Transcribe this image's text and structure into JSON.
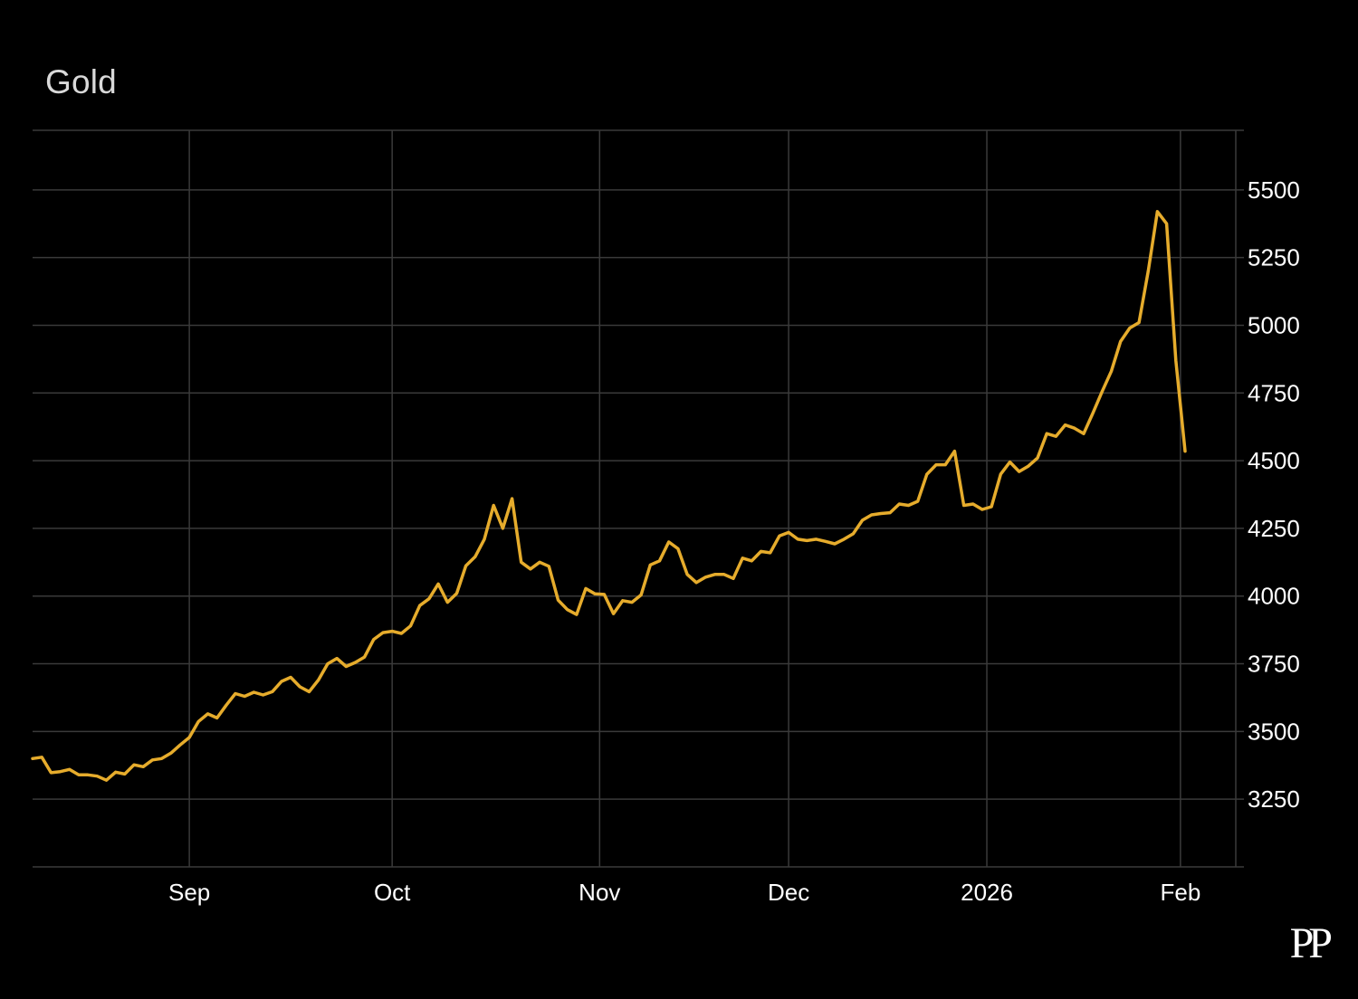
{
  "colors": {
    "background": "#000000",
    "grid": "#3a3a3a",
    "line": "#e6ac2c",
    "text": "#ffffff",
    "title": "#d9d9d9"
  },
  "logo_text": "PP",
  "chart_data": {
    "type": "line",
    "title": "Gold",
    "xlabel": "",
    "ylabel": "",
    "ylim": [
      3000,
      5720
    ],
    "yticks": [
      3250,
      3500,
      3750,
      4000,
      4250,
      4500,
      4750,
      5000,
      5250,
      5500
    ],
    "xlim": [
      0,
      130.5
    ],
    "xticks": [
      {
        "x": 17,
        "label": "Sep"
      },
      {
        "x": 39,
        "label": "Oct"
      },
      {
        "x": 61.5,
        "label": "Nov"
      },
      {
        "x": 82,
        "label": "Dec"
      },
      {
        "x": 103.5,
        "label": "2026"
      },
      {
        "x": 124.5,
        "label": "Feb"
      }
    ],
    "grid": true,
    "legend": "none",
    "series": [
      {
        "values": [
          3400,
          3405,
          3348,
          3352,
          3360,
          3340,
          3340,
          3335,
          3320,
          3350,
          3343,
          3377,
          3370,
          3395,
          3400,
          3420,
          3450,
          3478,
          3537,
          3565,
          3550,
          3597,
          3640,
          3630,
          3645,
          3635,
          3647,
          3685,
          3700,
          3665,
          3647,
          3690,
          3750,
          3770,
          3740,
          3755,
          3775,
          3840,
          3865,
          3870,
          3862,
          3890,
          3965,
          3990,
          4045,
          3977,
          4010,
          4112,
          4145,
          4210,
          4335,
          4250,
          4360,
          4125,
          4100,
          4125,
          4110,
          3985,
          3950,
          3932,
          4028,
          4008,
          4006,
          3935,
          3983,
          3977,
          4004,
          4115,
          4130,
          4200,
          4175,
          4080,
          4050,
          4070,
          4080,
          4080,
          4065,
          4140,
          4130,
          4165,
          4160,
          4222,
          4235,
          4210,
          4205,
          4210,
          4202,
          4193,
          4210,
          4230,
          4280,
          4300,
          4305,
          4308,
          4340,
          4335,
          4350,
          4450,
          4485,
          4485,
          4535,
          4335,
          4340,
          4320,
          4330,
          4450,
          4495,
          4460,
          4480,
          4510,
          4600,
          4590,
          4632,
          4620,
          4600,
          4675,
          4755,
          4830,
          4940,
          4990,
          5010,
          5200,
          5420,
          5375,
          4870,
          4535
        ]
      }
    ]
  }
}
